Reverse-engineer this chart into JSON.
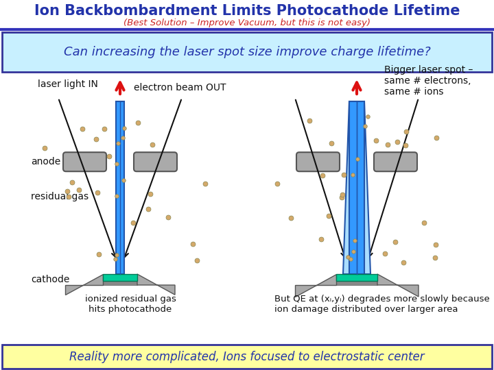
{
  "title": "Ion Backbombardment Limits Photocathode Lifetime",
  "subtitle": "(Best Solution – Improve Vacuum, but this is not easy)",
  "question_box": "Can increasing the laser spot size improve charge lifetime?",
  "bottom_box": "Reality more complicated, Ions focused to electrostatic center",
  "title_color": "#2233AA",
  "subtitle_color": "#CC2222",
  "question_box_bg": "#C8F0FF",
  "bottom_box_bg": "#FFFFA0",
  "box_border_color": "#333399",
  "label_laser_in": "laser light IN",
  "label_beam_out": "electron beam OUT",
  "label_anode": "anode",
  "label_residual": "residual gas",
  "label_cathode": "cathode",
  "label_ionized": "ionized residual gas\nhits photocathode",
  "label_bigger": "Bigger laser spot –\nsame # electrons,\nsame # ions",
  "label_qe_black": "But QE at (x",
  "label_qe": "But QE at (xi,yi) degrades more slowly because\nion damage distributed over larger area ",
  "label_qe_red": "(?)",
  "bg_color": "#FFFFFF",
  "arrow_color": "#DD1111",
  "cathode_color": "#AAAAAA",
  "cathode_teal": "#00CC99",
  "beam_color_left": "#3399FF",
  "beam_color_right": "#AADDFF",
  "beam_dark": "#2255AA",
  "anode_color": "#AAAAAA",
  "dot_color": "#D4A96A",
  "line_color": "#111111"
}
